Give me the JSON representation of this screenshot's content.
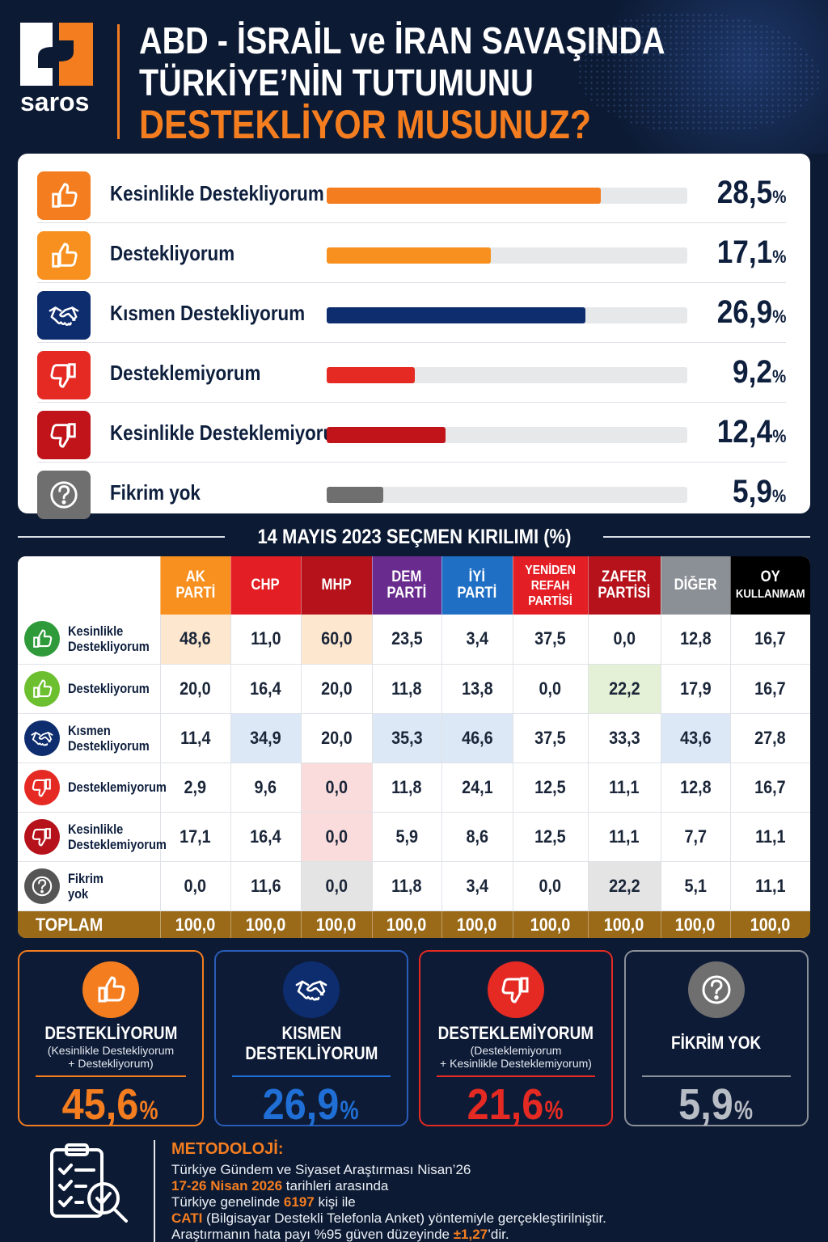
{
  "brand": {
    "name": "saros"
  },
  "title": {
    "line1": "ABD - İSRAİL ve İRAN SAVAŞINDA",
    "line2": "TÜRKİYE’NİN TUTUMUNU",
    "line3": "DESTEKLİYOR MUSUNUZ?"
  },
  "colors": {
    "orange": "#f47d20",
    "navy": "#0e2d6e",
    "red": "#e42a23",
    "darkred": "#c0131a",
    "gray": "#6f6f6f",
    "background": "#0c1a33"
  },
  "chart_data": [
    {
      "type": "bar",
      "orientation": "horizontal",
      "categories": [
        "Kesinlikle Destekliyorum",
        "Destekliyorum",
        "Kısmen Destekliyorum",
        "Desteklemiyorum",
        "Kesinlikle Desteklemiyorum",
        "Fikrim yok"
      ],
      "values": [
        28.5,
        17.1,
        26.9,
        9.2,
        12.4,
        5.9
      ],
      "value_labels": [
        "28,5",
        "17,1",
        "26,9",
        "9,2",
        "12,4",
        "5,9"
      ],
      "unit": "%",
      "bar_colors": [
        "#f47d20",
        "#f7901e",
        "#0e2d6e",
        "#e42a23",
        "#c0131a",
        "#6f6f6f"
      ],
      "icons": [
        "thumbs-up-icon",
        "thumbs-up-icon",
        "handshake-icon",
        "thumbs-down-icon",
        "thumbs-down-icon",
        "question-icon"
      ],
      "xlim": [
        0,
        37.5
      ]
    },
    {
      "type": "table",
      "title": "14 MAYIS 2023 SEÇMEN KIRILIMI (%)",
      "columns": [
        {
          "label": "AK PARTİ",
          "color": "#f7901e"
        },
        {
          "label": "CHP",
          "color": "#e31e24"
        },
        {
          "label": "MHP",
          "color": "#b5121b"
        },
        {
          "label": "DEM PARTİ",
          "color": "#6a2b8f"
        },
        {
          "label": "İYİ PARTİ",
          "color": "#1f6fc4"
        },
        {
          "label": "YENİDEN REFAH PARTİSİ",
          "color": "#e31e24"
        },
        {
          "label": "ZAFER PARTİSİ",
          "color": "#b5121b"
        },
        {
          "label": "DİĞER",
          "color": "#8b8f96"
        },
        {
          "label": "OY KULLANMAM",
          "color": "#000000"
        }
      ],
      "rows": [
        {
          "label": "Kesinlikle Destekliyorum",
          "icon": "thumbs-up-icon",
          "icon_color": "#2e9a3a",
          "values": [
            "48,6",
            "11,0",
            "60,0",
            "23,5",
            "3,4",
            "37,5",
            "0,0",
            "12,8",
            "16,7"
          ],
          "highlight": [
            "#fde8cf",
            "",
            "#fde8cf",
            "",
            "",
            "",
            "",
            "",
            ""
          ]
        },
        {
          "label": "Destekliyorum",
          "icon": "thumbs-up-icon",
          "icon_color": "#6cbf2e",
          "values": [
            "20,0",
            "16,4",
            "20,0",
            "11,8",
            "13,8",
            "0,0",
            "22,2",
            "17,9",
            "16,7"
          ],
          "highlight": [
            "",
            "",
            "",
            "",
            "",
            "",
            "#e5f1d6",
            "",
            ""
          ]
        },
        {
          "label": "Kısmen Destekliyorum",
          "icon": "handshake-icon",
          "icon_color": "#0e2d6e",
          "values": [
            "11,4",
            "34,9",
            "20,0",
            "35,3",
            "46,6",
            "37,5",
            "33,3",
            "43,6",
            "27,8"
          ],
          "highlight": [
            "",
            "#dde8f6",
            "",
            "#dde8f6",
            "#dde8f6",
            "",
            "",
            "#dde8f6",
            ""
          ]
        },
        {
          "label": "Desteklemiyorum",
          "icon": "thumbs-down-icon",
          "icon_color": "#e42a23",
          "values": [
            "2,9",
            "9,6",
            "0,0",
            "11,8",
            "24,1",
            "12,5",
            "11,1",
            "12,8",
            "16,7"
          ],
          "highlight": [
            "",
            "",
            "#fbdcdc",
            "",
            "",
            "",
            "",
            "",
            ""
          ]
        },
        {
          "label": "Kesinlikle Desteklemiyorum",
          "icon": "thumbs-down-icon",
          "icon_color": "#b5121b",
          "values": [
            "17,1",
            "16,4",
            "0,0",
            "5,9",
            "8,6",
            "12,5",
            "11,1",
            "7,7",
            "11,1"
          ],
          "highlight": [
            "",
            "",
            "#fbdcdc",
            "",
            "",
            "",
            "",
            "",
            ""
          ]
        },
        {
          "label": "Fikrim yok",
          "icon": "question-icon",
          "icon_color": "#555555",
          "values": [
            "0,0",
            "11,6",
            "0,0",
            "11,8",
            "3,4",
            "0,0",
            "22,2",
            "5,1",
            "11,1"
          ],
          "highlight": [
            "",
            "",
            "#e4e4e4",
            "",
            "",
            "",
            "#e4e4e4",
            "",
            ""
          ]
        }
      ],
      "total": {
        "label": "TOPLAM",
        "values": [
          "100,0",
          "100,0",
          "100,0",
          "100,0",
          "100,0",
          "100,0",
          "100,0",
          "100,0",
          "100,0"
        ]
      }
    }
  ],
  "summary": [
    {
      "title": "DESTEKLİYORUM",
      "sub": "(Kesinlikle Destekliyorum\n+ Destekliyorum)",
      "value": "45,6",
      "unit": "%",
      "color": "#f47d20",
      "icon": "thumbs-up-icon"
    },
    {
      "title": "KISMEN\nDESTEKLİYORUM",
      "sub": "",
      "value": "26,9",
      "unit": "%",
      "color": "#1f6fd6",
      "icon": "handshake-icon"
    },
    {
      "title": "DESTEKLEMİYORUM",
      "sub": "(Desteklemiyorum\n+ Kesinlikle Desteklemiyorum)",
      "value": "21,6",
      "unit": "%",
      "color": "#e42a23",
      "icon": "thumbs-down-icon"
    },
    {
      "title": "FİKRİM YOK",
      "sub": "",
      "value": "5,9",
      "unit": "%",
      "color": "#b8bcc4",
      "icon": "question-icon"
    }
  ],
  "methodology": {
    "title": "METODOLOJİ:",
    "line1": "Türkiye Gündem ve Siyaset Araştırması Nisan’26",
    "line2_hl": "17-26 Nisan 2026",
    "line2_rest": " tarihleri arasında",
    "line3_pre": "Türkiye genelinde ",
    "line3_hl": "6197",
    "line3_rest": " kişi ile",
    "line4_hl": "CATI",
    "line4_rest": " (Bilgisayar Destekli Telefonla Anket) yöntemiyle gerçekleştirilniştir.",
    "line5_pre": "Araştırmanın hata payı %95 güven düzeyinde ",
    "line5_hl": "±1,27",
    "line5_rest": "’dir."
  }
}
